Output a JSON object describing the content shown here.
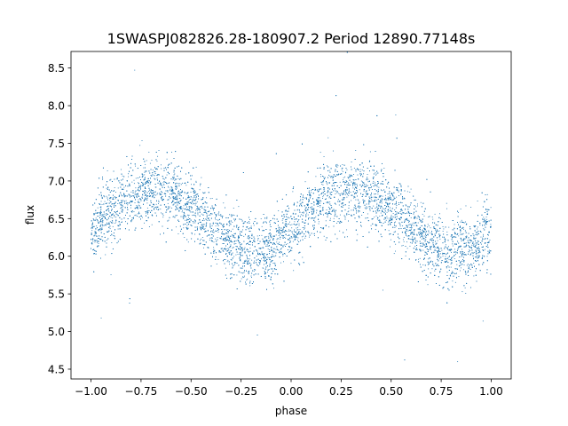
{
  "chart_data": {
    "type": "scatter",
    "title": "1SWASPJ082826.28-180907.2 Period 12890.77148s",
    "xlabel": "phase",
    "ylabel": "flux",
    "xlim": [
      -1.1,
      1.1
    ],
    "ylim": [
      4.37,
      8.72
    ],
    "xticks": [
      -1.0,
      -0.75,
      -0.5,
      -0.25,
      0.0,
      0.25,
      0.5,
      0.75,
      1.0
    ],
    "xtick_labels": [
      "−1.00",
      "−0.75",
      "−0.50",
      "−0.25",
      "0.00",
      "0.25",
      "0.50",
      "0.75",
      "1.00"
    ],
    "yticks": [
      4.5,
      5.0,
      5.5,
      6.0,
      6.5,
      7.0,
      7.5,
      8.0,
      8.5
    ],
    "ytick_labels": [
      "4.5",
      "5.0",
      "5.5",
      "6.0",
      "6.5",
      "7.0",
      "7.5",
      "8.0",
      "8.5"
    ],
    "grid": false,
    "legend": false,
    "marker_color": "#1f77b4",
    "series": [
      {
        "x_range": [
          -1.0,
          1.0
        ],
        "points_per_phase_unit": 5000,
        "profile_phase": [
          -1.0,
          -0.9,
          -0.8,
          -0.7,
          -0.6,
          -0.5,
          -0.4,
          -0.3,
          -0.2,
          -0.1,
          0.0,
          0.1,
          0.2,
          0.3,
          0.4,
          0.5,
          0.6,
          0.7,
          0.8,
          0.9,
          1.0
        ],
        "profile_flux": [
          6.35,
          6.6,
          6.8,
          6.88,
          6.85,
          6.65,
          6.4,
          6.15,
          6.05,
          6.1,
          6.35,
          6.6,
          6.8,
          6.88,
          6.85,
          6.65,
          6.4,
          6.15,
          6.05,
          6.1,
          6.35
        ],
        "scatter_sigma": 0.22
      }
    ]
  }
}
